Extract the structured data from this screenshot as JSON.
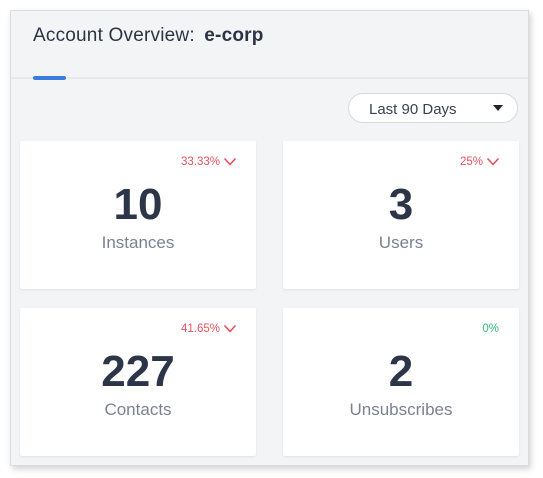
{
  "header": {
    "title_prefix": "Account Overview:",
    "org_name": "e-corp"
  },
  "filter": {
    "selected_range": "Last 90 Days",
    "icon": "caret-down-icon"
  },
  "colors": {
    "accent": "#3b7ddd",
    "decrease": "#e6505e",
    "neutral_change": "#2ebd7b",
    "value_text": "#2d3648"
  },
  "metrics": [
    {
      "label": "Instances",
      "value": "10",
      "change": "33.33%",
      "trend": "down",
      "trend_icon": "chevron-down-icon"
    },
    {
      "label": "Users",
      "value": "3",
      "change": "25%",
      "trend": "down",
      "trend_icon": "chevron-down-icon"
    },
    {
      "label": "Contacts",
      "value": "227",
      "change": "41.65%",
      "trend": "down",
      "trend_icon": "chevron-down-icon"
    },
    {
      "label": "Unsubscribes",
      "value": "2",
      "change": "0%",
      "trend": "flat",
      "trend_icon": ""
    }
  ]
}
